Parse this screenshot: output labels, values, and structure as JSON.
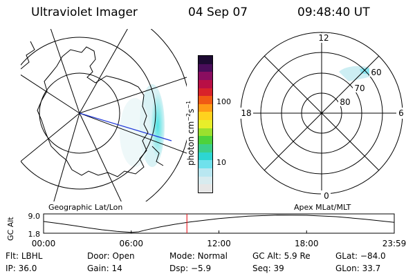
{
  "header": {
    "instrument": "Ultraviolet Imager",
    "date": "04 Sep 07",
    "time": "09:48:40 UT"
  },
  "colors": {
    "track_marker": "#e8262c",
    "mlt_line": "#1f36d8",
    "aurora": "#39e0e0"
  },
  "geo_panel": {
    "label": "Geographic Lat/Lon"
  },
  "polar_panel": {
    "label": "Apex MLat/MLT",
    "mlt_labels": [
      "12",
      "18",
      "6",
      "0"
    ],
    "lat_labels": [
      "60",
      "70",
      "80"
    ]
  },
  "colorbar": {
    "unit_prefix": "photon cm",
    "unit_exp1": "−2",
    "unit_s": "s",
    "unit_exp2": "−1",
    "ticks": [
      "100",
      "10"
    ],
    "colors": [
      "#e6e6e6",
      "#d8ebef",
      "#b9e7f1",
      "#6fe1ec",
      "#2dd6d2",
      "#3ccf8a",
      "#4dd23c",
      "#9be02e",
      "#e8ee2a",
      "#ffd21e",
      "#ff9b16",
      "#f05a14",
      "#d8222a",
      "#b80f45",
      "#8a0d60",
      "#4a0d5a",
      "#1d0a32"
    ]
  },
  "altitude_plot": {
    "ylabel": "GC Alt",
    "yticks": [
      "9.0",
      "1.8"
    ],
    "xticks": [
      "00:00",
      "06:00",
      "12:00",
      "18:00",
      "23:59"
    ],
    "xlim_hours": [
      0,
      24
    ],
    "current_time_hours": 9.811,
    "track": [
      {
        "t": 0.0,
        "alt": 6.3
      },
      {
        "t": 1.0,
        "alt": 5.5
      },
      {
        "t": 2.0,
        "alt": 4.6
      },
      {
        "t": 3.0,
        "alt": 3.6
      },
      {
        "t": 4.0,
        "alt": 2.7
      },
      {
        "t": 5.0,
        "alt": 2.0
      },
      {
        "t": 6.0,
        "alt": 1.6
      },
      {
        "t": 6.5,
        "alt": 1.8
      },
      {
        "t": 7.0,
        "alt": 2.6
      },
      {
        "t": 8.0,
        "alt": 4.0
      },
      {
        "t": 9.0,
        "alt": 5.1
      },
      {
        "t": 10.0,
        "alt": 6.1
      },
      {
        "t": 12.0,
        "alt": 7.6
      },
      {
        "t": 14.0,
        "alt": 8.6
      },
      {
        "t": 16.0,
        "alt": 9.1
      },
      {
        "t": 18.0,
        "alt": 9.0
      },
      {
        "t": 20.0,
        "alt": 8.4
      },
      {
        "t": 22.0,
        "alt": 7.3
      },
      {
        "t": 24.0,
        "alt": 5.9
      }
    ]
  },
  "footer": [
    [
      {
        "k": "Flt:",
        "v": "LBHL"
      },
      {
        "k": "IP:",
        "v": "36.0"
      }
    ],
    [
      {
        "k": "Door:",
        "v": "Open"
      },
      {
        "k": "Gain:",
        "v": "14"
      }
    ],
    [
      {
        "k": "Mode:",
        "v": "Normal"
      },
      {
        "k": "Dsp:",
        "v": "−5.9"
      }
    ],
    [
      {
        "k": "GC Alt:",
        "v": "5.9 Re"
      },
      {
        "k": "Seq:",
        "v": "39"
      }
    ],
    [
      {
        "k": "GLat:",
        "v": "−84.0"
      },
      {
        "k": "GLon:",
        "v": "33.7"
      }
    ]
  ],
  "chart_data": {
    "type": "line",
    "xlabel": "",
    "ylabel": "GC Alt",
    "x_hours": [
      0,
      1,
      2,
      3,
      4,
      5,
      6,
      6.5,
      7,
      8,
      9,
      10,
      12,
      14,
      16,
      18,
      20,
      22,
      24
    ],
    "series": [
      {
        "values": [
          6.3,
          5.5,
          4.6,
          3.6,
          2.7,
          2.0,
          1.6,
          1.8,
          2.6,
          4.0,
          5.1,
          6.1,
          7.6,
          8.6,
          9.1,
          9.0,
          8.4,
          7.3,
          5.9
        ]
      }
    ],
    "ylim": [
      1.8,
      9.0
    ],
    "marker_time": "09:48:40"
  }
}
